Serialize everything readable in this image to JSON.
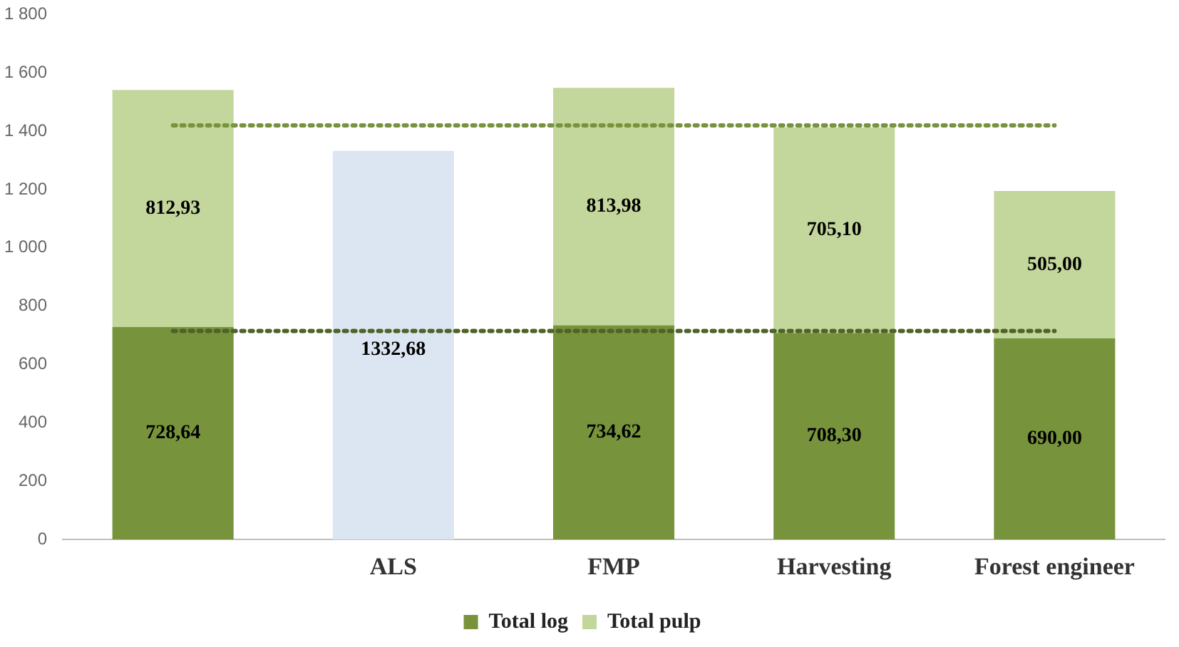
{
  "chart_data": {
    "type": "bar",
    "stacked": true,
    "categories": [
      null,
      "ALS",
      "FMP",
      "Harvesting",
      "Forest engineer"
    ],
    "series": [
      {
        "name": "Total log",
        "color": "#77933c",
        "values": [
          728.64,
          null,
          734.62,
          708.3,
          690.0
        ],
        "value_labels": [
          "728,64",
          null,
          "734,62",
          "708,30",
          "690,00"
        ]
      },
      {
        "name": "Total pulp",
        "color": "#c3d69b",
        "values": [
          812.93,
          null,
          813.98,
          705.1,
          505.0
        ],
        "value_labels": [
          "812,93",
          null,
          "813,98",
          "705,10",
          "505,00"
        ]
      },
      {
        "color": "#dce6f2",
        "values": [
          null,
          1332.68,
          null,
          null,
          null
        ],
        "value_labels": [
          null,
          "1332,68",
          null,
          null,
          null
        ]
      }
    ],
    "ylim": [
      0,
      1800
    ],
    "yticks": [
      0,
      200,
      400,
      600,
      800,
      {
        "value": 1000,
        "label": "1 000"
      },
      {
        "value": 1200,
        "label": "1 200"
      },
      {
        "value": 1400,
        "label": "1 400"
      },
      {
        "value": 1600,
        "label": "1 600"
      },
      {
        "value": 1800,
        "label": "1 800"
      }
    ],
    "grid": false,
    "legend": "bottom",
    "ref_lines": [
      {
        "axis": "y",
        "value": 1420,
        "color": "#77933c",
        "line_style": "dotted"
      },
      {
        "axis": "y",
        "value": 715,
        "color": "#4f6228",
        "line_style": "dotted"
      }
    ]
  }
}
